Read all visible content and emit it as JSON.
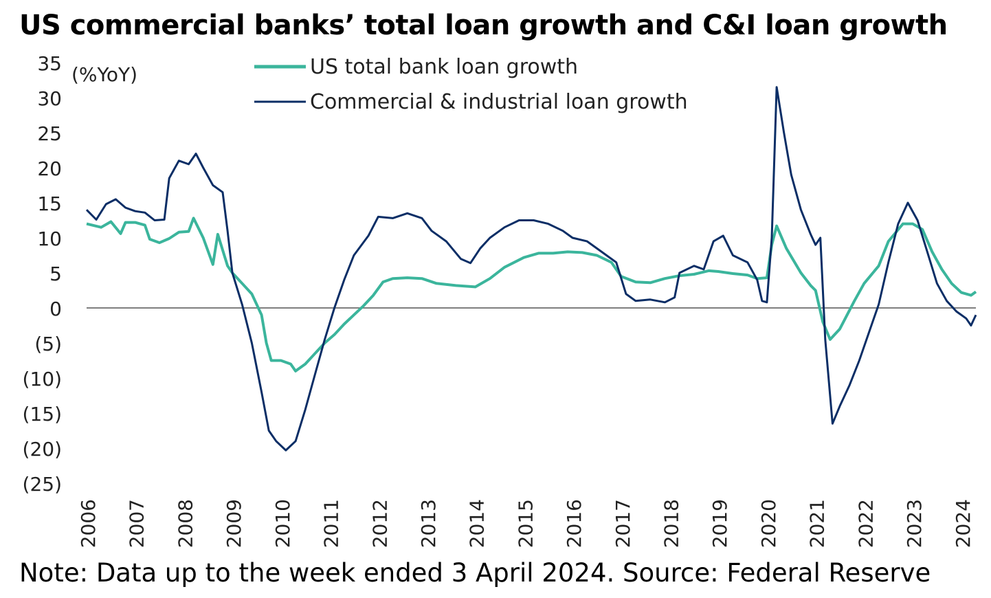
{
  "title": "US commercial banks’ total loan growth and C&I loan growth",
  "note": "Note: Data up to the week ended 3 April 2024. Source: Federal Reserve",
  "colors": {
    "total": "#3bb59c",
    "ci": "#0b2e66",
    "zero_line": "#7f7f7f",
    "text": "#222222"
  },
  "chart_data": {
    "type": "line",
    "title": "US commercial banks’ total loan growth and C&I loan growth",
    "ylabel": "(%YoY)",
    "xlabel": "",
    "ylim": [
      -25,
      35
    ],
    "xlim": [
      2006,
      2024.3
    ],
    "y_ticks": [
      {
        "value": 35,
        "label": "35"
      },
      {
        "value": 30,
        "label": "30"
      },
      {
        "value": 25,
        "label": "25"
      },
      {
        "value": 20,
        "label": "20"
      },
      {
        "value": 15,
        "label": "15"
      },
      {
        "value": 10,
        "label": "10"
      },
      {
        "value": 5,
        "label": "5"
      },
      {
        "value": 0,
        "label": "0"
      },
      {
        "value": -5,
        "label": "(5)"
      },
      {
        "value": -10,
        "label": "(10)"
      },
      {
        "value": -15,
        "label": "(15)"
      },
      {
        "value": -20,
        "label": "(20)"
      },
      {
        "value": -25,
        "label": "(25)"
      }
    ],
    "x_ticks": [
      "2006",
      "2007",
      "2008",
      "2009",
      "2010",
      "2011",
      "2012",
      "2013",
      "2014",
      "2015",
      "2016",
      "2017",
      "2018",
      "2019",
      "2020",
      "2021",
      "2022",
      "2023",
      "2024"
    ],
    "legend_position": "top-center",
    "grid": false,
    "zero_line": true,
    "series": [
      {
        "name": "US total bank loan growth",
        "color": "#3bb59c",
        "points": [
          [
            2006.0,
            12.0
          ],
          [
            2006.3,
            11.5
          ],
          [
            2006.5,
            12.3
          ],
          [
            2006.7,
            10.6
          ],
          [
            2006.8,
            12.2
          ],
          [
            2007.0,
            12.2
          ],
          [
            2007.2,
            11.8
          ],
          [
            2007.3,
            9.8
          ],
          [
            2007.5,
            9.3
          ],
          [
            2007.7,
            9.9
          ],
          [
            2007.9,
            10.8
          ],
          [
            2008.1,
            10.9
          ],
          [
            2008.2,
            12.8
          ],
          [
            2008.4,
            10.0
          ],
          [
            2008.6,
            6.2
          ],
          [
            2008.7,
            10.5
          ],
          [
            2008.9,
            6.0
          ],
          [
            2009.0,
            5.0
          ],
          [
            2009.2,
            3.5
          ],
          [
            2009.4,
            2.0
          ],
          [
            2009.6,
            -1.0
          ],
          [
            2009.7,
            -5.0
          ],
          [
            2009.8,
            -7.5
          ],
          [
            2010.0,
            -7.5
          ],
          [
            2010.2,
            -8.0
          ],
          [
            2010.3,
            -9.0
          ],
          [
            2010.5,
            -8.0
          ],
          [
            2010.7,
            -6.5
          ],
          [
            2010.9,
            -5.0
          ],
          [
            2011.1,
            -3.8
          ],
          [
            2011.3,
            -2.3
          ],
          [
            2011.5,
            -1.0
          ],
          [
            2011.7,
            0.3
          ],
          [
            2011.9,
            1.8
          ],
          [
            2012.1,
            3.7
          ],
          [
            2012.3,
            4.2
          ],
          [
            2012.6,
            4.3
          ],
          [
            2012.9,
            4.2
          ],
          [
            2013.2,
            3.5
          ],
          [
            2013.6,
            3.2
          ],
          [
            2014.0,
            3.0
          ],
          [
            2014.3,
            4.2
          ],
          [
            2014.6,
            5.8
          ],
          [
            2015.0,
            7.2
          ],
          [
            2015.3,
            7.8
          ],
          [
            2015.6,
            7.8
          ],
          [
            2015.9,
            8.0
          ],
          [
            2016.2,
            7.9
          ],
          [
            2016.5,
            7.5
          ],
          [
            2016.8,
            6.5
          ],
          [
            2017.0,
            4.5
          ],
          [
            2017.3,
            3.7
          ],
          [
            2017.6,
            3.6
          ],
          [
            2017.9,
            4.2
          ],
          [
            2018.2,
            4.6
          ],
          [
            2018.5,
            4.8
          ],
          [
            2018.8,
            5.3
          ],
          [
            2019.0,
            5.2
          ],
          [
            2019.3,
            4.9
          ],
          [
            2019.6,
            4.7
          ],
          [
            2019.8,
            4.2
          ],
          [
            2020.0,
            4.3
          ],
          [
            2020.1,
            9.0
          ],
          [
            2020.2,
            11.7
          ],
          [
            2020.4,
            8.5
          ],
          [
            2020.7,
            5.0
          ],
          [
            2020.9,
            3.2
          ],
          [
            2021.0,
            2.5
          ],
          [
            2021.15,
            -2.0
          ],
          [
            2021.3,
            -4.5
          ],
          [
            2021.5,
            -3.0
          ],
          [
            2021.8,
            1.0
          ],
          [
            2022.0,
            3.5
          ],
          [
            2022.3,
            6.0
          ],
          [
            2022.5,
            9.5
          ],
          [
            2022.8,
            12.0
          ],
          [
            2023.0,
            12.0
          ],
          [
            2023.2,
            11.2
          ],
          [
            2023.4,
            8.0
          ],
          [
            2023.6,
            5.5
          ],
          [
            2023.8,
            3.5
          ],
          [
            2024.0,
            2.2
          ],
          [
            2024.2,
            1.8
          ],
          [
            2024.3,
            2.3
          ]
        ]
      },
      {
        "name": "Commercial & industrial loan growth",
        "color": "#0b2e66",
        "points": [
          [
            2006.0,
            14.0
          ],
          [
            2006.2,
            12.6
          ],
          [
            2006.4,
            14.8
          ],
          [
            2006.6,
            15.5
          ],
          [
            2006.8,
            14.3
          ],
          [
            2007.0,
            13.8
          ],
          [
            2007.2,
            13.6
          ],
          [
            2007.4,
            12.5
          ],
          [
            2007.6,
            12.6
          ],
          [
            2007.7,
            18.5
          ],
          [
            2007.9,
            21.0
          ],
          [
            2008.1,
            20.5
          ],
          [
            2008.25,
            22.0
          ],
          [
            2008.4,
            20.0
          ],
          [
            2008.6,
            17.5
          ],
          [
            2008.8,
            16.5
          ],
          [
            2008.9,
            11.0
          ],
          [
            2009.0,
            5.0
          ],
          [
            2009.2,
            0.5
          ],
          [
            2009.4,
            -5.0
          ],
          [
            2009.6,
            -12.0
          ],
          [
            2009.75,
            -17.5
          ],
          [
            2009.9,
            -19.0
          ],
          [
            2010.1,
            -20.3
          ],
          [
            2010.3,
            -19.0
          ],
          [
            2010.5,
            -14.5
          ],
          [
            2010.7,
            -9.5
          ],
          [
            2010.9,
            -4.5
          ],
          [
            2011.1,
            0.0
          ],
          [
            2011.3,
            4.0
          ],
          [
            2011.5,
            7.5
          ],
          [
            2011.8,
            10.3
          ],
          [
            2012.0,
            13.0
          ],
          [
            2012.3,
            12.8
          ],
          [
            2012.6,
            13.5
          ],
          [
            2012.9,
            12.8
          ],
          [
            2013.1,
            11.0
          ],
          [
            2013.4,
            9.5
          ],
          [
            2013.7,
            7.0
          ],
          [
            2013.9,
            6.4
          ],
          [
            2014.1,
            8.5
          ],
          [
            2014.3,
            10.0
          ],
          [
            2014.6,
            11.5
          ],
          [
            2014.9,
            12.5
          ],
          [
            2015.2,
            12.5
          ],
          [
            2015.5,
            12.0
          ],
          [
            2015.8,
            11.0
          ],
          [
            2016.0,
            10.0
          ],
          [
            2016.3,
            9.5
          ],
          [
            2016.6,
            8.0
          ],
          [
            2016.9,
            6.5
          ],
          [
            2017.1,
            2.0
          ],
          [
            2017.3,
            1.0
          ],
          [
            2017.6,
            1.2
          ],
          [
            2017.9,
            0.8
          ],
          [
            2018.1,
            1.5
          ],
          [
            2018.2,
            5.0
          ],
          [
            2018.5,
            6.0
          ],
          [
            2018.7,
            5.5
          ],
          [
            2018.9,
            9.5
          ],
          [
            2019.1,
            10.3
          ],
          [
            2019.3,
            7.5
          ],
          [
            2019.6,
            6.5
          ],
          [
            2019.8,
            4.0
          ],
          [
            2019.9,
            1.0
          ],
          [
            2020.0,
            0.8
          ],
          [
            2020.1,
            10.0
          ],
          [
            2020.2,
            31.5
          ],
          [
            2020.35,
            25.0
          ],
          [
            2020.5,
            19.0
          ],
          [
            2020.7,
            14.0
          ],
          [
            2020.9,
            10.5
          ],
          [
            2021.0,
            9.0
          ],
          [
            2021.1,
            10.0
          ],
          [
            2021.2,
            -4.5
          ],
          [
            2021.35,
            -16.5
          ],
          [
            2021.5,
            -14.0
          ],
          [
            2021.7,
            -11.0
          ],
          [
            2021.9,
            -7.5
          ],
          [
            2022.1,
            -3.5
          ],
          [
            2022.3,
            0.5
          ],
          [
            2022.5,
            6.5
          ],
          [
            2022.7,
            12.0
          ],
          [
            2022.9,
            15.0
          ],
          [
            2023.1,
            12.5
          ],
          [
            2023.3,
            8.0
          ],
          [
            2023.5,
            3.5
          ],
          [
            2023.7,
            1.0
          ],
          [
            2023.9,
            -0.5
          ],
          [
            2024.1,
            -1.5
          ],
          [
            2024.2,
            -2.5
          ],
          [
            2024.3,
            -1.0
          ]
        ]
      }
    ]
  }
}
